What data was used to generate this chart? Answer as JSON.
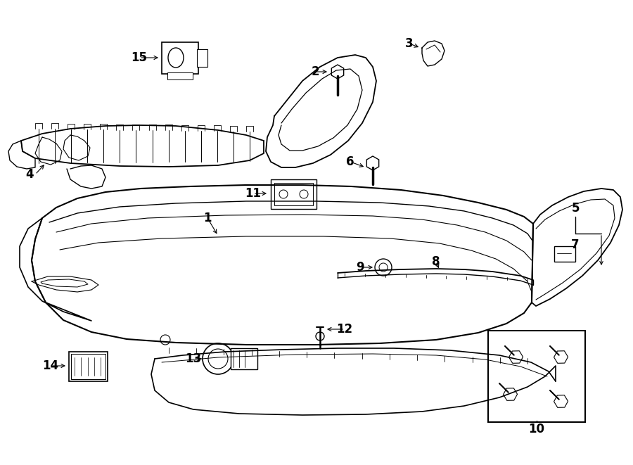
{
  "bg_color": "#ffffff",
  "line_color": "#000000",
  "lw": 1.0,
  "fig_width": 9.0,
  "fig_height": 6.61,
  "dpi": 100
}
